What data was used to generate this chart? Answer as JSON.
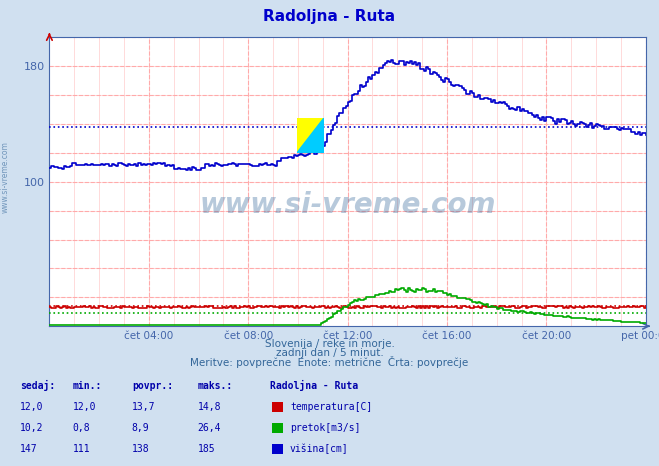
{
  "title": "Radoljna - Ruta",
  "title_color": "#0000cc",
  "bg_color": "#d0e0f0",
  "plot_bg_color": "#ffffff",
  "x_label_color": "#4466aa",
  "y_label_color": "#4466aa",
  "xlim": [
    0,
    288
  ],
  "ylim": [
    0,
    200
  ],
  "ytick_positions": [
    100,
    180
  ],
  "ytick_labels": [
    "100",
    "180"
  ],
  "xtick_labels": [
    "čet 04:00",
    "čet 08:00",
    "čet 12:00",
    "čet 16:00",
    "čet 20:00",
    "pet 00:00"
  ],
  "xtick_positions": [
    48,
    96,
    144,
    192,
    240,
    288
  ],
  "subtitle1": "Slovenija / reke in morje.",
  "subtitle2": "zadnji dan / 5 minut.",
  "subtitle3": "Meritve: povprečne  Enote: metrične  Črta: povprečje",
  "subtitle_color": "#336699",
  "watermark": "www.si-vreme.com",
  "watermark_color": "#336699",
  "watermark_alpha": 0.35,
  "legend_title": "Radoljna - Ruta",
  "legend_labels": [
    "temperatura[C]",
    "pretok[m3/s]",
    "višina[cm]"
  ],
  "legend_colors": [
    "#cc0000",
    "#00aa00",
    "#0000cc"
  ],
  "table_headers": [
    "sedaj:",
    "min.:",
    "povpr.:",
    "maks.:"
  ],
  "table_data": [
    [
      "12,0",
      "12,0",
      "13,7",
      "14,8"
    ],
    [
      "10,2",
      "0,8",
      "8,9",
      "26,4"
    ],
    [
      "147",
      "111",
      "138",
      "185"
    ]
  ],
  "temp_avg": 13.7,
  "flow_avg": 8.9,
  "height_avg": 138,
  "temp_color": "#cc0000",
  "flow_color": "#00aa00",
  "height_color": "#0000cc",
  "minor_grid_color": "#ffcccc",
  "major_grid_color": "#ffaaaa",
  "minor_grid_x_step": 12,
  "minor_grid_y_step": 20,
  "major_grid_x_positions": [
    48,
    96,
    144,
    192,
    240,
    288
  ],
  "major_grid_y_positions": [
    20,
    40,
    60,
    80,
    100,
    120,
    140,
    160,
    180,
    200
  ]
}
